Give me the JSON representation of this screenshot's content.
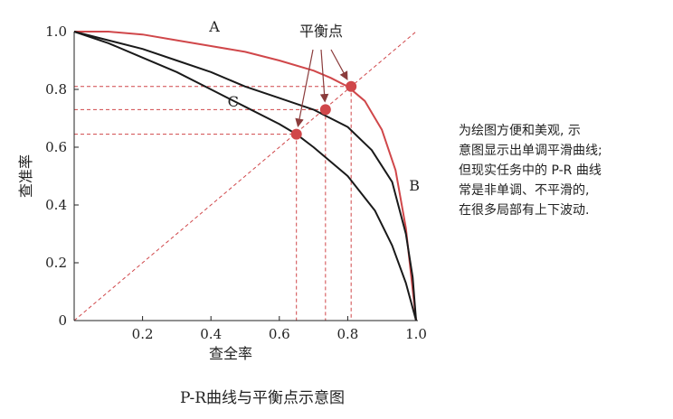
{
  "chart_data": {
    "type": "line",
    "xlabel": "查全率",
    "ylabel": "查准率",
    "xlim": [
      0,
      1
    ],
    "ylim": [
      0,
      1
    ],
    "x_ticks": [
      0.2,
      0.4,
      0.6,
      0.8,
      1.0
    ],
    "x_tick_labels": [
      "0.2",
      "0.4",
      "0.6",
      "0.8",
      "1.0"
    ],
    "y_ticks": [
      0,
      0.2,
      0.4,
      0.6,
      0.8,
      1.0
    ],
    "y_tick_labels": [
      "0",
      "0.2",
      "0.4",
      "0.6",
      "0.8",
      "1.0"
    ],
    "grid": false,
    "legend": "none",
    "series": [
      {
        "name": "A",
        "color": "#d0474a",
        "x": [
          0,
          0.1,
          0.2,
          0.3,
          0.4,
          0.5,
          0.6,
          0.7,
          0.75,
          0.8,
          0.85,
          0.9,
          0.94,
          0.97,
          1.0
        ],
        "y": [
          1.0,
          1.0,
          0.99,
          0.97,
          0.95,
          0.93,
          0.9,
          0.865,
          0.84,
          0.81,
          0.76,
          0.66,
          0.52,
          0.32,
          0.0
        ]
      },
      {
        "name": "B",
        "color": "#1a1a1a",
        "x": [
          0,
          0.1,
          0.2,
          0.3,
          0.4,
          0.5,
          0.6,
          0.7,
          0.8,
          0.87,
          0.93,
          0.97,
          0.99,
          1.0
        ],
        "y": [
          1.0,
          0.97,
          0.94,
          0.9,
          0.86,
          0.81,
          0.77,
          0.73,
          0.67,
          0.59,
          0.48,
          0.3,
          0.15,
          0.0
        ]
      },
      {
        "name": "C",
        "color": "#1a1a1a",
        "x": [
          0,
          0.1,
          0.2,
          0.3,
          0.4,
          0.5,
          0.6,
          0.65,
          0.7,
          0.8,
          0.88,
          0.93,
          0.97,
          1.0
        ],
        "y": [
          1.0,
          0.96,
          0.91,
          0.86,
          0.8,
          0.74,
          0.68,
          0.645,
          0.6,
          0.5,
          0.38,
          0.26,
          0.13,
          0.0
        ]
      }
    ],
    "diagonal": {
      "from": [
        0,
        0
      ],
      "to": [
        1,
        1
      ],
      "color": "#d0474a",
      "style": "dashed"
    },
    "annotation": {
      "label": "平衡点",
      "points": [
        {
          "series": "C",
          "x": 0.65,
          "y": 0.645
        },
        {
          "series": "B",
          "x": 0.735,
          "y": 0.73
        },
        {
          "series": "A",
          "x": 0.81,
          "y": 0.81
        }
      ]
    }
  },
  "caption": "P-R曲线与平衡点示意图",
  "note": {
    "lines": [
      "为绘图方便和美观, 示",
      "意图显示出单调平滑曲线;",
      "但现实任务中的 P-R 曲线",
      "常是非单调、不平滑的,",
      "在很多局部有上下波动."
    ]
  }
}
